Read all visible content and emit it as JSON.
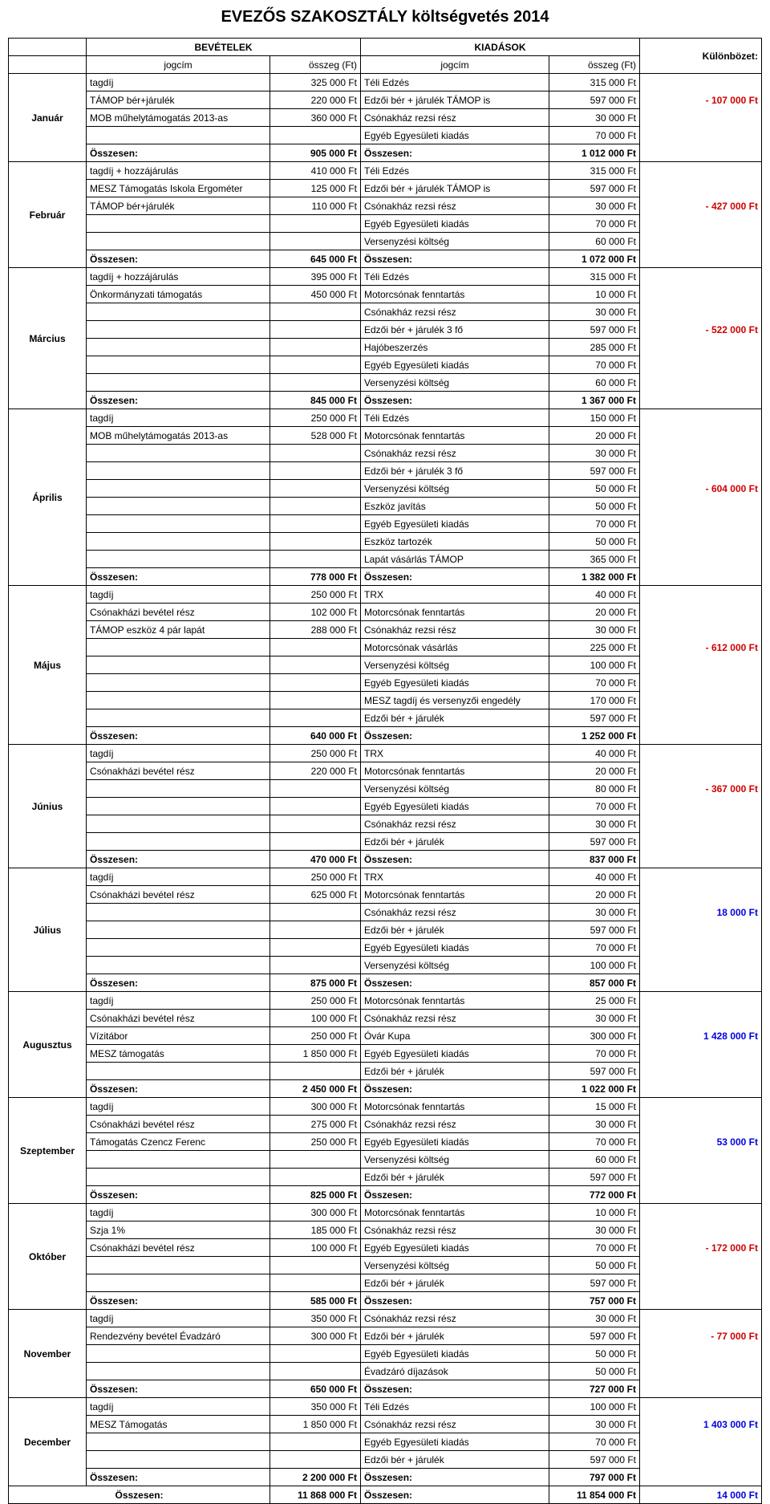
{
  "title": "EVEZŐS SZAKOSZTÁLY költségvetés 2014",
  "header": {
    "bev": "BEVÉTELEK",
    "kiad": "KIADÁSOK",
    "kul": "Különbözet:",
    "jog": "jogcím",
    "osz": "összeg (Ft)"
  },
  "months": [
    {
      "label": "Január",
      "diff": "-    107 000 Ft",
      "diff_color": "red",
      "rows": [
        {
          "in": "tagdíj",
          "iv": "325 000 Ft",
          "en": "Téli Edzés",
          "ev": "315 000 Ft"
        },
        {
          "in": "TÁMOP bér+járulék",
          "iv": "220 000 Ft",
          "en": "Edzői bér + járulék TÁMOP is",
          "ev": "597 000 Ft"
        },
        {
          "in": "MOB műhelytámogatás 2013-as",
          "iv": "360 000 Ft",
          "en": "Csónakház rezsi rész",
          "ev": "30 000 Ft"
        },
        {
          "in": "",
          "iv": "",
          "en": "Egyéb Egyesületi kiadás",
          "ev": "70 000 Ft"
        }
      ],
      "sum_in": "905 000 Ft",
      "sum_out": "1 012 000 Ft"
    },
    {
      "label": "Február",
      "diff": "-    427 000 Ft",
      "diff_color": "red",
      "rows": [
        {
          "in": "tagdíj + hozzájárulás",
          "iv": "410 000 Ft",
          "en": "Téli Edzés",
          "ev": "315 000 Ft"
        },
        {
          "in": "MESZ Támogatás Iskola Ergométer",
          "iv": "125 000 Ft",
          "en": "Edzői bér + járulék TÁMOP is",
          "ev": "597 000 Ft"
        },
        {
          "in": "TÁMOP bér+járulék",
          "iv": "110 000 Ft",
          "en": "Csónakház rezsi rész",
          "ev": "30 000 Ft"
        },
        {
          "in": "",
          "iv": "",
          "en": "Egyéb Egyesületi kiadás",
          "ev": "70 000 Ft"
        },
        {
          "in": "",
          "iv": "",
          "en": "Versenyzési költség",
          "ev": "60 000 Ft"
        }
      ],
      "sum_in": "645 000 Ft",
      "sum_out": "1 072 000 Ft"
    },
    {
      "label": "Március",
      "diff": "-    522 000 Ft",
      "diff_color": "red",
      "rows": [
        {
          "in": "tagdíj + hozzájárulás",
          "iv": "395 000 Ft",
          "en": "Téli Edzés",
          "ev": "315 000 Ft"
        },
        {
          "in": "Önkormányzati támogatás",
          "iv": "450 000 Ft",
          "en": "Motorcsónak fenntartás",
          "ev": "10 000 Ft"
        },
        {
          "in": "",
          "iv": "",
          "en": "Csónakház rezsi rész",
          "ev": "30 000 Ft"
        },
        {
          "in": "",
          "iv": "",
          "en": "Edzői bér + járulék 3 fő",
          "ev": "597 000 Ft"
        },
        {
          "in": "",
          "iv": "",
          "en": "Hajóbeszerzés",
          "ev": "285 000 Ft"
        },
        {
          "in": "",
          "iv": "",
          "en": "Egyéb Egyesületi kiadás",
          "ev": "70 000 Ft"
        },
        {
          "in": "",
          "iv": "",
          "en": "Versenyzési költség",
          "ev": "60 000 Ft"
        }
      ],
      "sum_in": "845 000 Ft",
      "sum_out": "1 367 000 Ft"
    },
    {
      "label": "Április",
      "diff": "-    604 000 Ft",
      "diff_color": "red",
      "rows": [
        {
          "in": "tagdíj",
          "iv": "250 000 Ft",
          "en": "Téli Edzés",
          "ev": "150 000 Ft"
        },
        {
          "in": "MOB műhelytámogatás 2013-as",
          "iv": "528 000 Ft",
          "en": "Motorcsónak fenntartás",
          "ev": "20 000 Ft"
        },
        {
          "in": "",
          "iv": "",
          "en": "Csónakház rezsi rész",
          "ev": "30 000 Ft"
        },
        {
          "in": "",
          "iv": "",
          "en": "Edzői bér + járulék 3 fő",
          "ev": "597 000 Ft"
        },
        {
          "in": "",
          "iv": "",
          "en": "Versenyzési költség",
          "ev": "50 000 Ft"
        },
        {
          "in": "",
          "iv": "",
          "en": "Eszköz javítás",
          "ev": "50 000 Ft"
        },
        {
          "in": "",
          "iv": "",
          "en": "Egyéb Egyesületi kiadás",
          "ev": "70 000 Ft"
        },
        {
          "in": "",
          "iv": "",
          "en": "Eszköz tartozék",
          "ev": "50 000 Ft"
        },
        {
          "in": "",
          "iv": "",
          "en": "Lapát vásárlás TÁMOP",
          "ev": "365 000 Ft"
        }
      ],
      "sum_in": "778 000 Ft",
      "sum_out": "1 382 000 Ft"
    },
    {
      "label": "Május",
      "diff": "-    612 000 Ft",
      "diff_color": "red",
      "rows": [
        {
          "in": "tagdíj",
          "iv": "250 000 Ft",
          "en": "TRX",
          "ev": "40 000 Ft"
        },
        {
          "in": "Csónakházi bevétel rész",
          "iv": "102 000 Ft",
          "en": "Motorcsónak fenntartás",
          "ev": "20 000 Ft"
        },
        {
          "in": "TÁMOP eszköz 4 pár lapát",
          "iv": "288 000 Ft",
          "en": "Csónakház rezsi rész",
          "ev": "30 000 Ft"
        },
        {
          "in": "",
          "iv": "",
          "en": "Motorcsónak vásárlás",
          "ev": "225 000 Ft"
        },
        {
          "in": "",
          "iv": "",
          "en": "Versenyzési költség",
          "ev": "100 000 Ft"
        },
        {
          "in": "",
          "iv": "",
          "en": "Egyéb Egyesületi kiadás",
          "ev": "70 000 Ft"
        },
        {
          "in": "",
          "iv": "",
          "en": "MESZ tagdíj és versenyzői engedély",
          "ev": "170 000 Ft"
        },
        {
          "in": "",
          "iv": "",
          "en": "Edzői bér + járulék",
          "ev": "597 000 Ft"
        }
      ],
      "sum_in": "640 000 Ft",
      "sum_out": "1 252 000 Ft"
    },
    {
      "label": "Június",
      "diff": "-    367 000 Ft",
      "diff_color": "red",
      "rows": [
        {
          "in": "tagdíj",
          "iv": "250 000 Ft",
          "en": "TRX",
          "ev": "40 000 Ft"
        },
        {
          "in": "Csónakházi bevétel rész",
          "iv": "220 000 Ft",
          "en": "Motorcsónak fenntartás",
          "ev": "20 000 Ft"
        },
        {
          "in": "",
          "iv": "",
          "en": "Versenyzési költség",
          "ev": "80 000 Ft"
        },
        {
          "in": "",
          "iv": "",
          "en": "Egyéb Egyesületi kiadás",
          "ev": "70 000 Ft"
        },
        {
          "in": "",
          "iv": "",
          "en": "Csónakház rezsi rész",
          "ev": "30 000 Ft"
        },
        {
          "in": "",
          "iv": "",
          "en": "Edzői bér + járulék",
          "ev": "597 000 Ft"
        }
      ],
      "sum_in": "470 000 Ft",
      "sum_out": "837 000 Ft"
    },
    {
      "label": "Július",
      "diff": "18 000 Ft",
      "diff_color": "blue",
      "rows": [
        {
          "in": "tagdíj",
          "iv": "250 000 Ft",
          "en": "TRX",
          "ev": "40 000 Ft"
        },
        {
          "in": "Csónakházi bevétel rész",
          "iv": "625 000 Ft",
          "en": "Motorcsónak fenntartás",
          "ev": "20 000 Ft"
        },
        {
          "in": "",
          "iv": "",
          "en": "Csónakház rezsi rész",
          "ev": "30 000 Ft"
        },
        {
          "in": "",
          "iv": "",
          "en": "Edzői bér + járulék",
          "ev": "597 000 Ft"
        },
        {
          "in": "",
          "iv": "",
          "en": "Egyéb Egyesületi kiadás",
          "ev": "70 000 Ft"
        },
        {
          "in": "",
          "iv": "",
          "en": "Versenyzési költség",
          "ev": "100 000 Ft"
        }
      ],
      "sum_in": "875 000 Ft",
      "sum_out": "857 000 Ft"
    },
    {
      "label": "Augusztus",
      "diff": "1 428 000 Ft",
      "diff_color": "blue",
      "rows": [
        {
          "in": "tagdíj",
          "iv": "250 000 Ft",
          "en": "Motorcsónak fenntartás",
          "ev": "25 000 Ft"
        },
        {
          "in": "Csónakházi bevétel rész",
          "iv": "100 000 Ft",
          "en": "Csónakház rezsi rész",
          "ev": "30 000 Ft"
        },
        {
          "in": "Vízitábor",
          "iv": "250 000 Ft",
          "en": "Óvár Kupa",
          "ev": "300 000 Ft"
        },
        {
          "in": "MESZ támogatás",
          "iv": "1 850 000 Ft",
          "en": "Egyéb Egyesületi kiadás",
          "ev": "70 000 Ft"
        },
        {
          "in": "",
          "iv": "",
          "en": "Edzői bér + járulék",
          "ev": "597 000 Ft"
        }
      ],
      "sum_in": "2 450 000 Ft",
      "sum_out": "1 022 000 Ft"
    },
    {
      "label": "Szeptember",
      "diff": "53 000 Ft",
      "diff_color": "blue",
      "rows": [
        {
          "in": "tagdíj",
          "iv": "300 000 Ft",
          "en": "Motorcsónak fenntartás",
          "ev": "15 000 Ft"
        },
        {
          "in": "Csónakházi bevétel rész",
          "iv": "275 000 Ft",
          "en": "Csónakház rezsi rész",
          "ev": "30 000 Ft"
        },
        {
          "in": "Támogatás Czencz Ferenc",
          "iv": "250 000 Ft",
          "en": "Egyéb Egyesületi kiadás",
          "ev": "70 000 Ft"
        },
        {
          "in": "",
          "iv": "",
          "en": "Versenyzési költség",
          "ev": "60 000 Ft"
        },
        {
          "in": "",
          "iv": "",
          "en": "Edzői bér + járulék",
          "ev": "597 000 Ft"
        }
      ],
      "sum_in": "825 000 Ft",
      "sum_out": "772 000 Ft"
    },
    {
      "label": "Október",
      "diff": "-    172 000 Ft",
      "diff_color": "red",
      "rows": [
        {
          "in": "tagdíj",
          "iv": "300 000 Ft",
          "en": "Motorcsónak fenntartás",
          "ev": "10 000 Ft"
        },
        {
          "in": "Szja 1%",
          "iv": "185 000 Ft",
          "en": "Csónakház rezsi rész",
          "ev": "30 000 Ft"
        },
        {
          "in": "Csónakházi bevétel rész",
          "iv": "100 000 Ft",
          "en": "Egyéb Egyesületi kiadás",
          "ev": "70 000 Ft"
        },
        {
          "in": "",
          "iv": "",
          "en": "Versenyzési költség",
          "ev": "50 000 Ft"
        },
        {
          "in": "",
          "iv": "",
          "en": "Edzői bér + járulék",
          "ev": "597 000 Ft"
        }
      ],
      "sum_in": "585 000 Ft",
      "sum_out": "757 000 Ft"
    },
    {
      "label": "November",
      "diff": "-      77 000 Ft",
      "diff_color": "red",
      "rows": [
        {
          "in": "tagdíj",
          "iv": "350 000 Ft",
          "en": "Csónakház rezsi rész",
          "ev": "30 000 Ft"
        },
        {
          "in": "Rendezvény bevétel Évadzáró",
          "iv": "300 000 Ft",
          "en": "Edzői bér + járulék",
          "ev": "597 000 Ft"
        },
        {
          "in": "",
          "iv": "",
          "en": "Egyéb Egyesületi kiadás",
          "ev": "50 000 Ft"
        },
        {
          "in": "",
          "iv": "",
          "en": "Évadzáró díjazások",
          "ev": "50 000 Ft"
        }
      ],
      "sum_in": "650 000 Ft",
      "sum_out": "727 000 Ft"
    },
    {
      "label": "December",
      "diff": "1 403 000 Ft",
      "diff_color": "blue",
      "rows": [
        {
          "in": "tagdíj",
          "iv": "350 000 Ft",
          "en": "Téli Edzés",
          "ev": "100 000 Ft"
        },
        {
          "in": "MESZ Támogatás",
          "iv": "1 850 000 Ft",
          "en": "Csónakház rezsi rész",
          "ev": "30 000 Ft"
        },
        {
          "in": "",
          "iv": "",
          "en": "Egyéb Egyesületi kiadás",
          "ev": "70 000 Ft"
        },
        {
          "in": "",
          "iv": "",
          "en": "Edzői bér + járulék",
          "ev": "597 000 Ft"
        }
      ],
      "sum_in": "2 200 000 Ft",
      "sum_out": "797 000 Ft"
    }
  ],
  "footer": {
    "label": "Összesen:",
    "sum_in": "11 868 000 Ft",
    "sum_out": "11 854 000 Ft",
    "diff": "14 000 Ft",
    "diff_color": "blue"
  },
  "sum_label": "Összesen:"
}
